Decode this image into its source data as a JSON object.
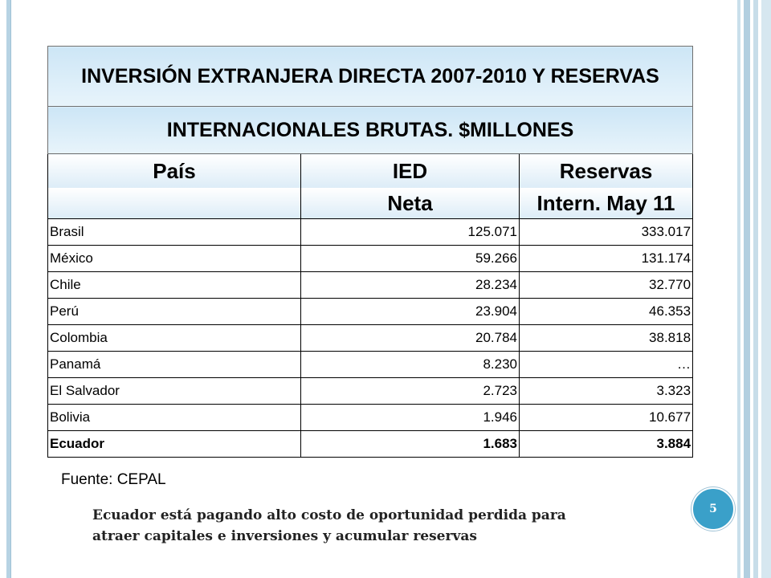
{
  "table": {
    "title_line1": "INVERSIÓN EXTRANJERA DIRECTA 2007-2010 Y RESERVAS",
    "title_line2": "INTERNACIONALES BRUTAS. $MILLONES",
    "headers_row1": [
      "País",
      "IED",
      "Reservas"
    ],
    "headers_row2": [
      "",
      "Neta",
      "Intern. May 11"
    ],
    "rows": [
      {
        "country": "Brasil",
        "ied": "125.071",
        "reservas": "333.017"
      },
      {
        "country": "México",
        "ied": "59.266",
        "reservas": "131.174"
      },
      {
        "country": "Chile",
        "ied": "28.234",
        "reservas": "32.770"
      },
      {
        "country": "Perú",
        "ied": "23.904",
        "reservas": "46.353"
      },
      {
        "country": "Colombia",
        "ied": "20.784",
        "reservas": "38.818"
      },
      {
        "country": "Panamá",
        "ied": "8.230",
        "reservas": "…"
      },
      {
        "country": "El Salvador",
        "ied": "2.723",
        "reservas": "3.323"
      },
      {
        "country": "Bolivia",
        "ied": "1.946",
        "reservas": "10.677"
      },
      {
        "country": "Ecuador",
        "ied": "1.683",
        "reservas": "3.884"
      }
    ]
  },
  "source": "Fuente: CEPAL",
  "page_number": "5",
  "note": "Ecuador está pagando alto costo de oportunidad perdida para atraer capitales e inversiones y acumular reservas",
  "colors": {
    "accent": "#3aa0c9",
    "frame": "#b7d3e3",
    "header_fill": "#cde6f6"
  }
}
